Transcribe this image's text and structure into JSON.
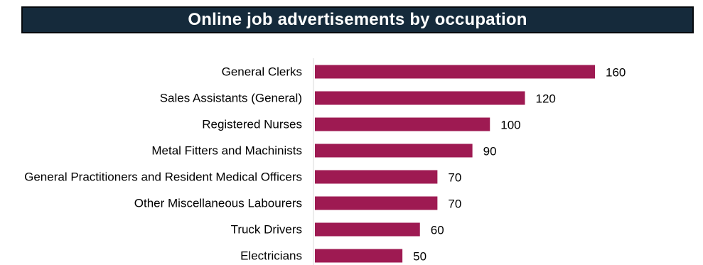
{
  "chart_data": {
    "type": "bar",
    "orientation": "horizontal",
    "title": "Online job advertisements by occupation",
    "categories": [
      "General Clerks",
      "Sales Assistants (General)",
      "Registered Nurses",
      "Metal Fitters and Machinists",
      "General Practitioners and Resident Medical Officers",
      "Other Miscellaneous Labourers",
      "Truck Drivers",
      "Electricians"
    ],
    "values": [
      160,
      120,
      100,
      90,
      70,
      70,
      60,
      50
    ],
    "value_labels": [
      "160",
      "120",
      "100",
      "90",
      "70",
      "70",
      "60",
      "50"
    ],
    "xlim": [
      0,
      160
    ],
    "grid": false,
    "bar_color": "#9e1a52",
    "title_background": "#152a3b"
  }
}
